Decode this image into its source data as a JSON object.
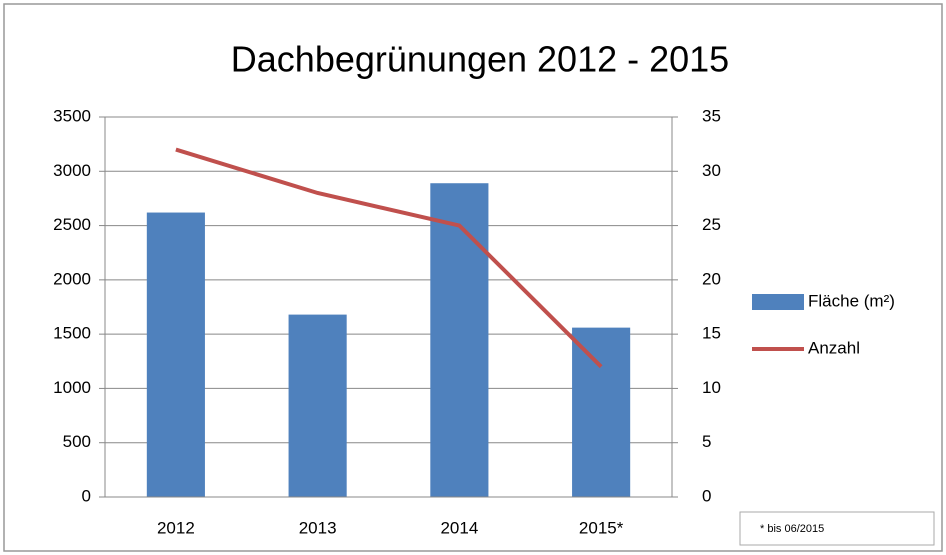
{
  "chart_data": {
    "type": "bar_line",
    "title": "Dachbegrünungen 2012 - 2015",
    "categories": [
      "2012",
      "2013",
      "2014",
      "2015*"
    ],
    "series": [
      {
        "name": "Fläche (m²)",
        "color": "#4f81bd",
        "type": "bar",
        "values": [
          2620,
          1680,
          2890,
          1560
        ]
      },
      {
        "name": "Anzahl",
        "color": "#c0504d",
        "type": "line",
        "axis": "y2",
        "values": [
          32,
          28,
          25,
          12
        ]
      }
    ],
    "ylim": [
      0,
      3500
    ],
    "yticks": [
      0,
      500,
      1000,
      1500,
      2000,
      2500,
      3000,
      3500
    ],
    "y2lim": [
      0,
      35
    ],
    "y2ticks": [
      0,
      5,
      10,
      15,
      20,
      25,
      30,
      35
    ],
    "grid": true,
    "legend": "right",
    "annotation": "* bis 06/2015"
  }
}
